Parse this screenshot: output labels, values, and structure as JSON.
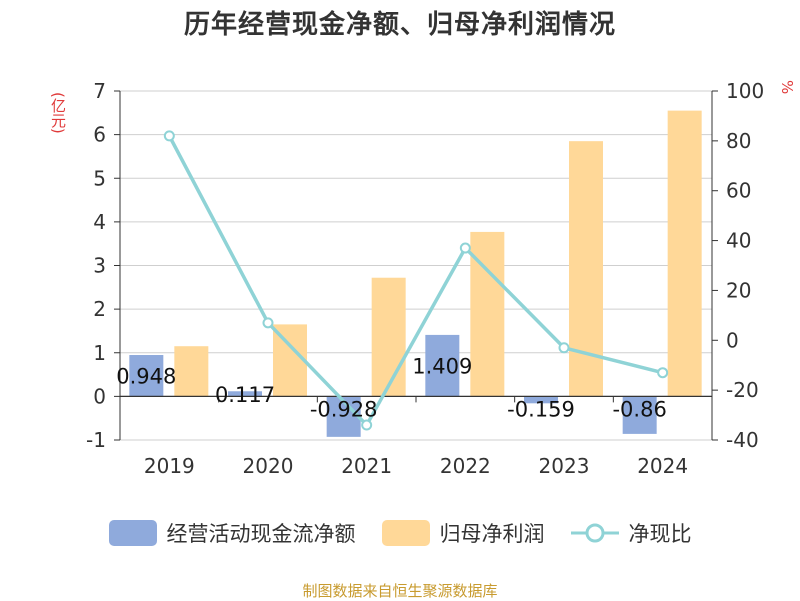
{
  "chart_data": {
    "type": "bar",
    "title": "历年经营现金净额、归母净利润情况",
    "categories": [
      "2019",
      "2020",
      "2021",
      "2022",
      "2023",
      "2024"
    ],
    "y_left": {
      "unit": "(亿元)",
      "ylim": [
        -1,
        7
      ],
      "ticks": [
        -1,
        0,
        1,
        2,
        3,
        4,
        5,
        6,
        7
      ]
    },
    "y_right": {
      "unit": "%",
      "ylim": [
        -40,
        100
      ],
      "ticks": [
        -40,
        -20,
        0,
        20,
        40,
        60,
        80,
        100
      ]
    },
    "series": [
      {
        "name": "经营活动现金流净额",
        "type": "bar",
        "axis": "left",
        "color": "#8faadc",
        "values": [
          0.948,
          0.117,
          -0.928,
          1.409,
          -0.159,
          -0.86
        ],
        "labels": [
          "0.948",
          "0.117",
          "-0.928",
          "1.409",
          "-0.159",
          "-0.86"
        ]
      },
      {
        "name": "归母净利润",
        "type": "bar",
        "axis": "left",
        "color": "#ffd898",
        "values": [
          1.15,
          1.65,
          2.72,
          3.77,
          5.85,
          6.55
        ]
      },
      {
        "name": "净现比",
        "type": "line",
        "axis": "right",
        "color": "#8fd3d6",
        "values": [
          82,
          7,
          -34,
          37,
          -3,
          -13
        ]
      }
    ],
    "grid": true,
    "legend": "bottom"
  },
  "source_text": "制图数据来自恒生聚源数据库"
}
